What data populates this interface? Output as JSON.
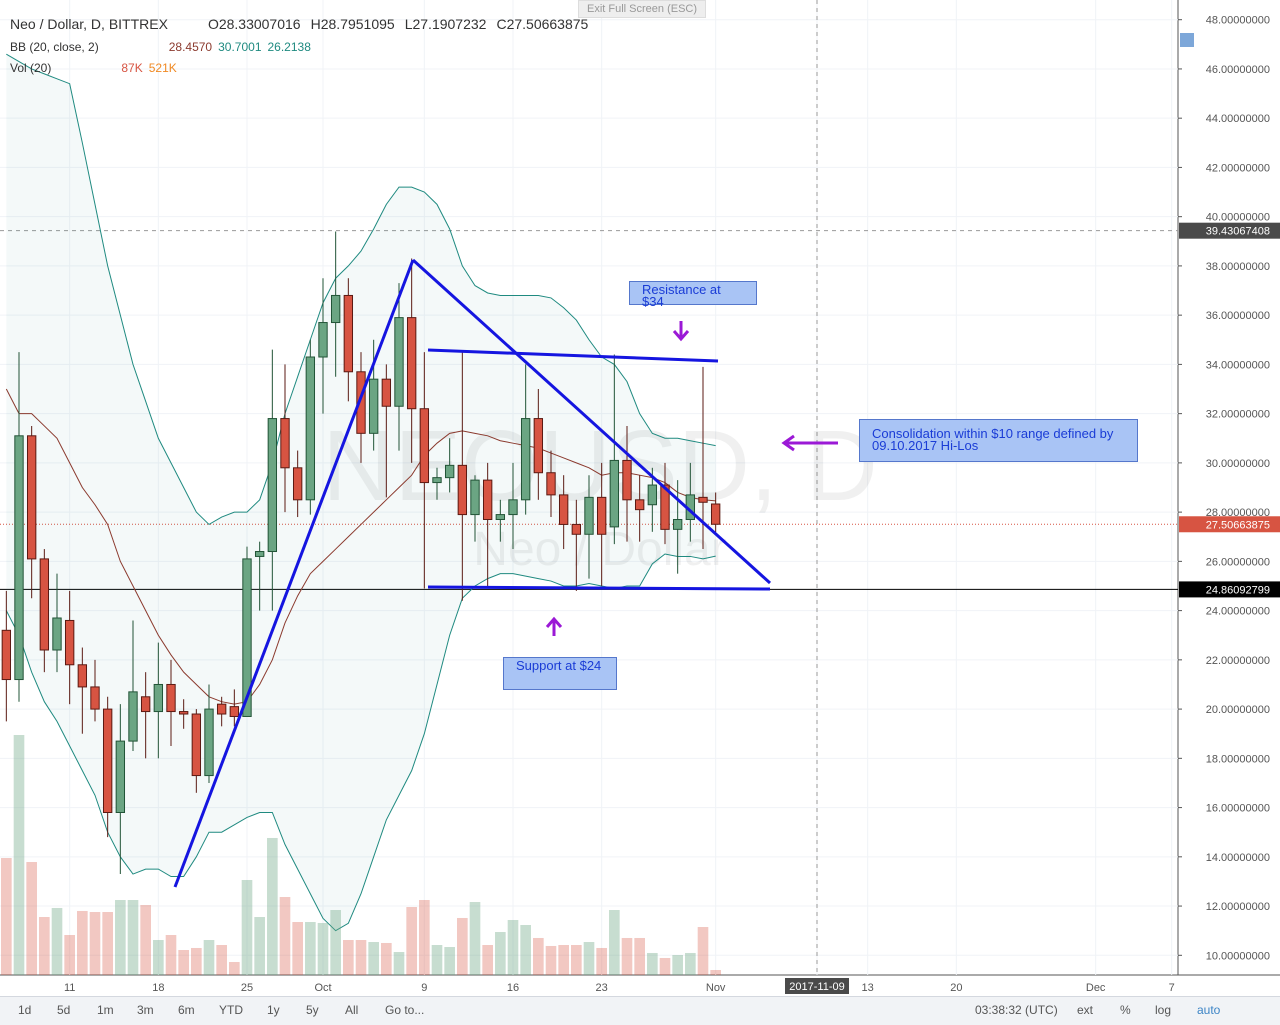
{
  "chart_data": {
    "type": "candlestick",
    "title": "Neo / Dollar, D, BITTREX",
    "ohlc_header": [
      {
        "label": "O",
        "value": 28.33007016
      },
      {
        "label": "H",
        "value": 28.7951095
      },
      {
        "label": "L",
        "value": 27.1907232
      },
      {
        "label": "C",
        "value": 27.50663875
      }
    ],
    "indicators": [
      {
        "name": "BB (20, close, 2)",
        "values": [
          "28.4570",
          "30.7001",
          "26.2138"
        ],
        "colors": [
          "#8b3a2e",
          "#1f8a80",
          "#1f8a80"
        ]
      },
      {
        "name": "Vol (20)",
        "values": [
          "87K",
          "521K"
        ],
        "colors": [
          "#d75442",
          "#f08a24"
        ]
      }
    ],
    "watermark": [
      "NEOUSD, D",
      "Neo / Dollar"
    ],
    "fullscreen_hint": "Exit Full Screen (ESC)",
    "categories": [
      null,
      null,
      null,
      null,
      null,
      "11",
      null,
      null,
      null,
      null,
      null,
      null,
      "18",
      null,
      null,
      null,
      null,
      null,
      null,
      "25",
      null,
      null,
      null,
      null,
      null,
      "Oct",
      null,
      null,
      null,
      null,
      null,
      null,
      null,
      "9",
      null,
      null,
      null,
      null,
      null,
      null,
      "16",
      null,
      null,
      null,
      null,
      null,
      null,
      "23",
      null,
      null,
      null,
      null,
      null,
      null,
      null,
      null,
      "Nov"
    ],
    "future_categories": [
      null,
      null,
      null,
      null,
      null,
      null,
      null,
      "2017-11-09",
      null,
      null,
      null,
      "13",
      null,
      null,
      null,
      null,
      null,
      null,
      "20",
      null,
      null,
      null,
      null,
      null,
      null,
      null,
      null,
      null,
      null,
      "Dec",
      null,
      null,
      null,
      null,
      null,
      "7"
    ],
    "open": [
      23.2,
      21.2,
      31.1,
      26.1,
      22.4,
      23.6,
      21.8,
      20.9,
      20.0,
      15.8,
      18.7,
      20.5,
      19.9,
      21.0,
      19.9,
      19.8,
      17.3,
      20.2,
      20.1,
      19.7,
      26.2,
      26.4,
      31.8,
      29.8,
      28.5,
      34.3,
      35.7,
      36.8,
      33.7,
      31.2,
      33.4,
      32.3,
      35.9,
      32.2,
      29.2,
      29.4,
      29.9,
      27.9,
      29.3,
      27.7,
      27.9,
      28.5,
      31.8,
      29.6,
      28.7,
      27.5,
      27.1,
      28.6,
      27.4,
      30.1,
      28.5,
      28.3,
      29.1,
      27.3,
      27.7,
      28.6,
      28.33007016
    ],
    "high": [
      24.8,
      34.5,
      31.5,
      26.5,
      25.5,
      24.8,
      22.5,
      22,
      20.5,
      20.2,
      23.6,
      21.5,
      22.7,
      22,
      20.4,
      20,
      21,
      20.5,
      20.8,
      26.6,
      26.8,
      34.6,
      34,
      30.5,
      35,
      37.5,
      39.4,
      37.5,
      34.5,
      35,
      34,
      37.3,
      38.3,
      34.5,
      29.8,
      31,
      34.5,
      29.5,
      30,
      28.5,
      30,
      34,
      33,
      30.5,
      29.5,
      28.5,
      29.5,
      30,
      34.4,
      31.5,
      29.5,
      29.8,
      30,
      29.3,
      30,
      33.9,
      28.7951095
    ],
    "low": [
      19.5,
      20.3,
      24.5,
      21.5,
      21.5,
      20.2,
      19,
      19.5,
      14.8,
      13.3,
      18.3,
      18,
      18,
      18.5,
      19.2,
      16.6,
      17,
      19.3,
      19.3,
      19.7,
      24,
      24,
      28,
      27.8,
      27.9,
      32,
      33.5,
      32.5,
      30,
      30.5,
      28.6,
      30.5,
      30,
      24.9,
      28.5,
      28.8,
      24.4,
      26.8,
      25,
      26.8,
      26.5,
      27.9,
      28.5,
      27.8,
      26.5,
      24.8,
      25.3,
      25,
      26.7,
      26.8,
      26.8,
      27.2,
      26.7,
      25.5,
      26.8,
      26.5,
      27.1907232
    ],
    "close": [
      21.2,
      31.1,
      26.1,
      22.4,
      23.7,
      21.8,
      20.9,
      20.0,
      15.8,
      18.7,
      20.7,
      19.9,
      21.0,
      19.9,
      19.8,
      17.3,
      20.0,
      19.8,
      19.7,
      26.1,
      26.4,
      31.8,
      29.8,
      28.5,
      34.3,
      35.7,
      36.8,
      33.7,
      31.2,
      33.4,
      32.3,
      35.9,
      32.2,
      29.2,
      29.4,
      29.9,
      27.9,
      29.3,
      27.7,
      27.9,
      28.5,
      31.8,
      29.6,
      28.7,
      27.5,
      27.1,
      28.6,
      27.1,
      30.1,
      28.5,
      28.1,
      29.1,
      27.3,
      27.7,
      28.7,
      28.4,
      27.50663875
    ],
    "volume": [
      2036,
      4176,
      1966,
      1009,
      1166,
      696,
      1114,
      1096,
      1096,
      1305,
      1305,
      1218,
      609,
      696,
      435,
      470,
      609,
      522,
      226,
      1653,
      1009,
      2384,
      1357,
      922,
      922,
      905,
      1131,
      609,
      609,
      574,
      557,
      400,
      1183,
      1305,
      522,
      487,
      992,
      1270,
      522,
      748,
      957,
      870,
      644,
      505,
      522,
      522,
      574,
      470,
      1131,
      644,
      644,
      383,
      296,
      348,
      383,
      835,
      87
    ],
    "bb_upper": [
      46.6,
      46.3,
      46,
      45.8,
      45.6,
      45.4,
      43,
      40.5,
      38,
      36,
      34,
      32.5,
      31,
      30,
      29,
      28,
      27.5,
      27.8,
      28,
      28,
      28.5,
      30,
      32,
      33.5,
      35,
      36.5,
      37.5,
      38,
      38.6,
      39.5,
      40.5,
      41.2,
      41.2,
      41,
      40.5,
      39.5,
      38,
      37.2,
      36.9,
      36.8,
      36.8,
      36.8,
      36.8,
      36.7,
      36.3,
      35.8,
      35,
      34.3,
      34,
      33.3,
      32,
      31.2,
      31,
      31,
      30.9,
      30.8,
      30.7001
    ],
    "bb_basis": [
      33,
      32,
      32,
      31.5,
      31,
      30,
      29,
      28.3,
      27.5,
      26,
      25,
      24,
      23,
      22.2,
      21.5,
      21,
      20.5,
      20.3,
      20.2,
      20.3,
      21,
      22,
      23.5,
      24.6,
      25.5,
      26,
      26.5,
      27,
      27.5,
      28,
      28.5,
      29,
      29.5,
      30.3,
      30.8,
      31.2,
      31.3,
      31.2,
      31.1,
      30.9,
      30.8,
      30.7,
      30.6,
      30.4,
      30.2,
      30,
      29.8,
      29.5,
      29.6,
      29.6,
      29.5,
      29.4,
      29.2,
      28.8,
      28.6,
      28.5,
      28.457
    ],
    "bb_lower": [
      24,
      23,
      21.5,
      20.3,
      19.5,
      18.5,
      17.5,
      16.5,
      15,
      14,
      13.3,
      13.5,
      13.5,
      13.2,
      13.2,
      14,
      15,
      15,
      15.3,
      15.6,
      15.8,
      15.8,
      14.5,
      13.5,
      12.5,
      11.5,
      11,
      11.3,
      12.5,
      14,
      15.5,
      16.5,
      17.5,
      19,
      21,
      23,
      24.5,
      25,
      25.3,
      25.5,
      25.5,
      25.4,
      25.3,
      25.2,
      25,
      25,
      25.1,
      25,
      24.9,
      25,
      25,
      25.9,
      26.3,
      26.2,
      26.2,
      26.1,
      26.2138
    ],
    "colors": {
      "up": "#6ba583",
      "up_border": "#225437",
      "down": "#d75442",
      "down_border": "#5b1a13",
      "band": "#1f8a80",
      "basis": "#8b3a2e"
    },
    "ylim": [
      9.2,
      48.8
    ],
    "yticks": [
      {
        "value": 10,
        "label": "10.00000000"
      },
      {
        "value": 12,
        "label": "12.00000000"
      },
      {
        "value": 14,
        "label": "14.00000000"
      },
      {
        "value": 16,
        "label": "16.00000000"
      },
      {
        "value": 18,
        "label": "18.00000000"
      },
      {
        "value": 20,
        "label": "20.00000000"
      },
      {
        "value": 22,
        "label": "22.00000000"
      },
      {
        "value": 24,
        "label": "24.00000000"
      },
      {
        "value": 26,
        "label": "26.00000000"
      },
      {
        "value": 28,
        "label": "28.00000000"
      },
      {
        "value": 30,
        "label": "30.00000000"
      },
      {
        "value": 32,
        "label": "32.00000000"
      },
      {
        "value": 34,
        "label": "34.00000000"
      },
      {
        "value": 36,
        "label": "36.00000000"
      },
      {
        "value": 38,
        "label": "38.00000000"
      },
      {
        "value": 40,
        "label": "40.00000000"
      },
      {
        "value": 42,
        "label": "42.00000000"
      },
      {
        "value": 44,
        "label": "44.00000000"
      },
      {
        "value": 46,
        "label": "46.00000000"
      },
      {
        "value": 48,
        "label": "48.00000000"
      }
    ],
    "price_markers": [
      {
        "value": 39.43067408,
        "label": "39.43067408",
        "color": "#4a4a4a",
        "style": "crosshair"
      },
      {
        "value": 27.50663875,
        "label": "27.50663875",
        "color": "#d75442",
        "style": "last"
      },
      {
        "value": 24.86092799,
        "label": "24.86092799",
        "color": "#000000",
        "style": "level"
      }
    ],
    "annotations": [
      "Resistance at $34",
      "Consolidation within $10 range defined by 09.10.2017 Hi-Los",
      "Support at $24"
    ],
    "toolbar": {
      "ranges": [
        "1d",
        "5d",
        "1m",
        "3m",
        "6m",
        "YTD",
        "1y",
        "5y",
        "All",
        "Go to..."
      ],
      "clock": "03:38:32 (UTC)",
      "options": [
        "ext",
        "%",
        "log",
        "auto"
      ]
    }
  }
}
